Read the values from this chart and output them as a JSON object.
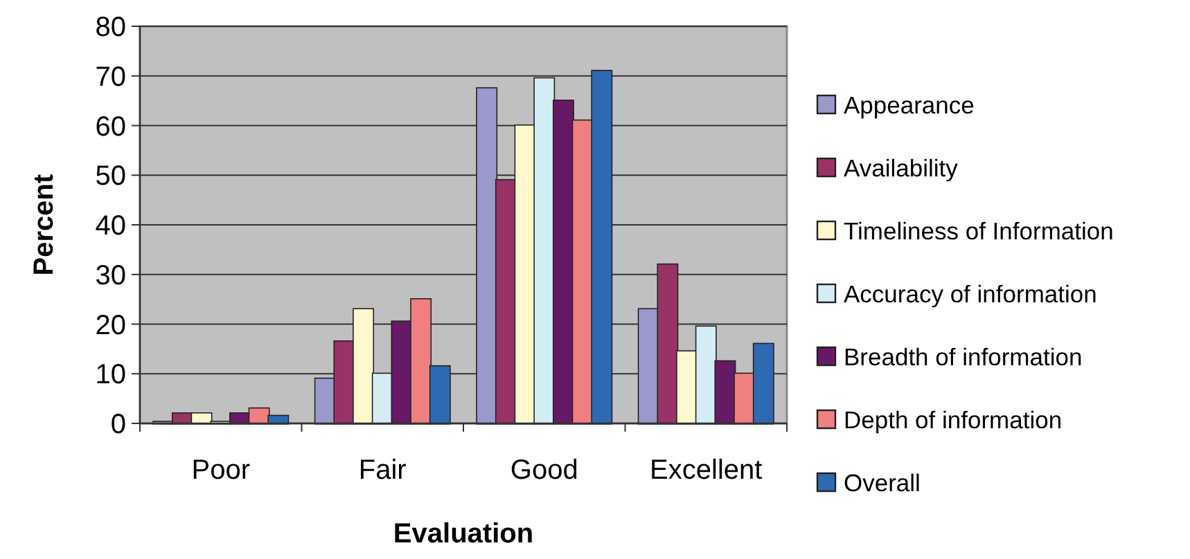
{
  "chart_data": {
    "type": "bar",
    "xlabel": "Evaluation",
    "ylabel": "Percent",
    "categories": [
      "Poor",
      "Fair",
      "Good",
      "Excellent"
    ],
    "series": [
      {
        "name": "Appearance",
        "color": "#9999cc",
        "values": [
          0.3,
          9,
          67.5,
          23
        ]
      },
      {
        "name": "Availability",
        "color": "#993366",
        "values": [
          2,
          16.5,
          49,
          32
        ]
      },
      {
        "name": "Timeliness of Information",
        "color": "#fff8cc",
        "values": [
          2,
          23,
          60,
          14.5
        ]
      },
      {
        "name": "Accuracy of information",
        "color": "#d4ecf4",
        "values": [
          0.3,
          10,
          69.5,
          19.5
        ]
      },
      {
        "name": "Breadth of information",
        "color": "#661a66",
        "values": [
          2,
          20.5,
          65,
          12.5
        ]
      },
      {
        "name": "Depth of information",
        "color": "#f08080",
        "values": [
          3,
          25,
          61,
          10
        ]
      },
      {
        "name": "Overall",
        "color": "#2e6ab3",
        "values": [
          1.5,
          11.5,
          71,
          16
        ]
      }
    ],
    "ylim": [
      0,
      80
    ],
    "yticks": [
      0,
      10,
      20,
      30,
      40,
      50,
      60,
      70,
      80
    ],
    "grid": "y",
    "legend": "right"
  }
}
